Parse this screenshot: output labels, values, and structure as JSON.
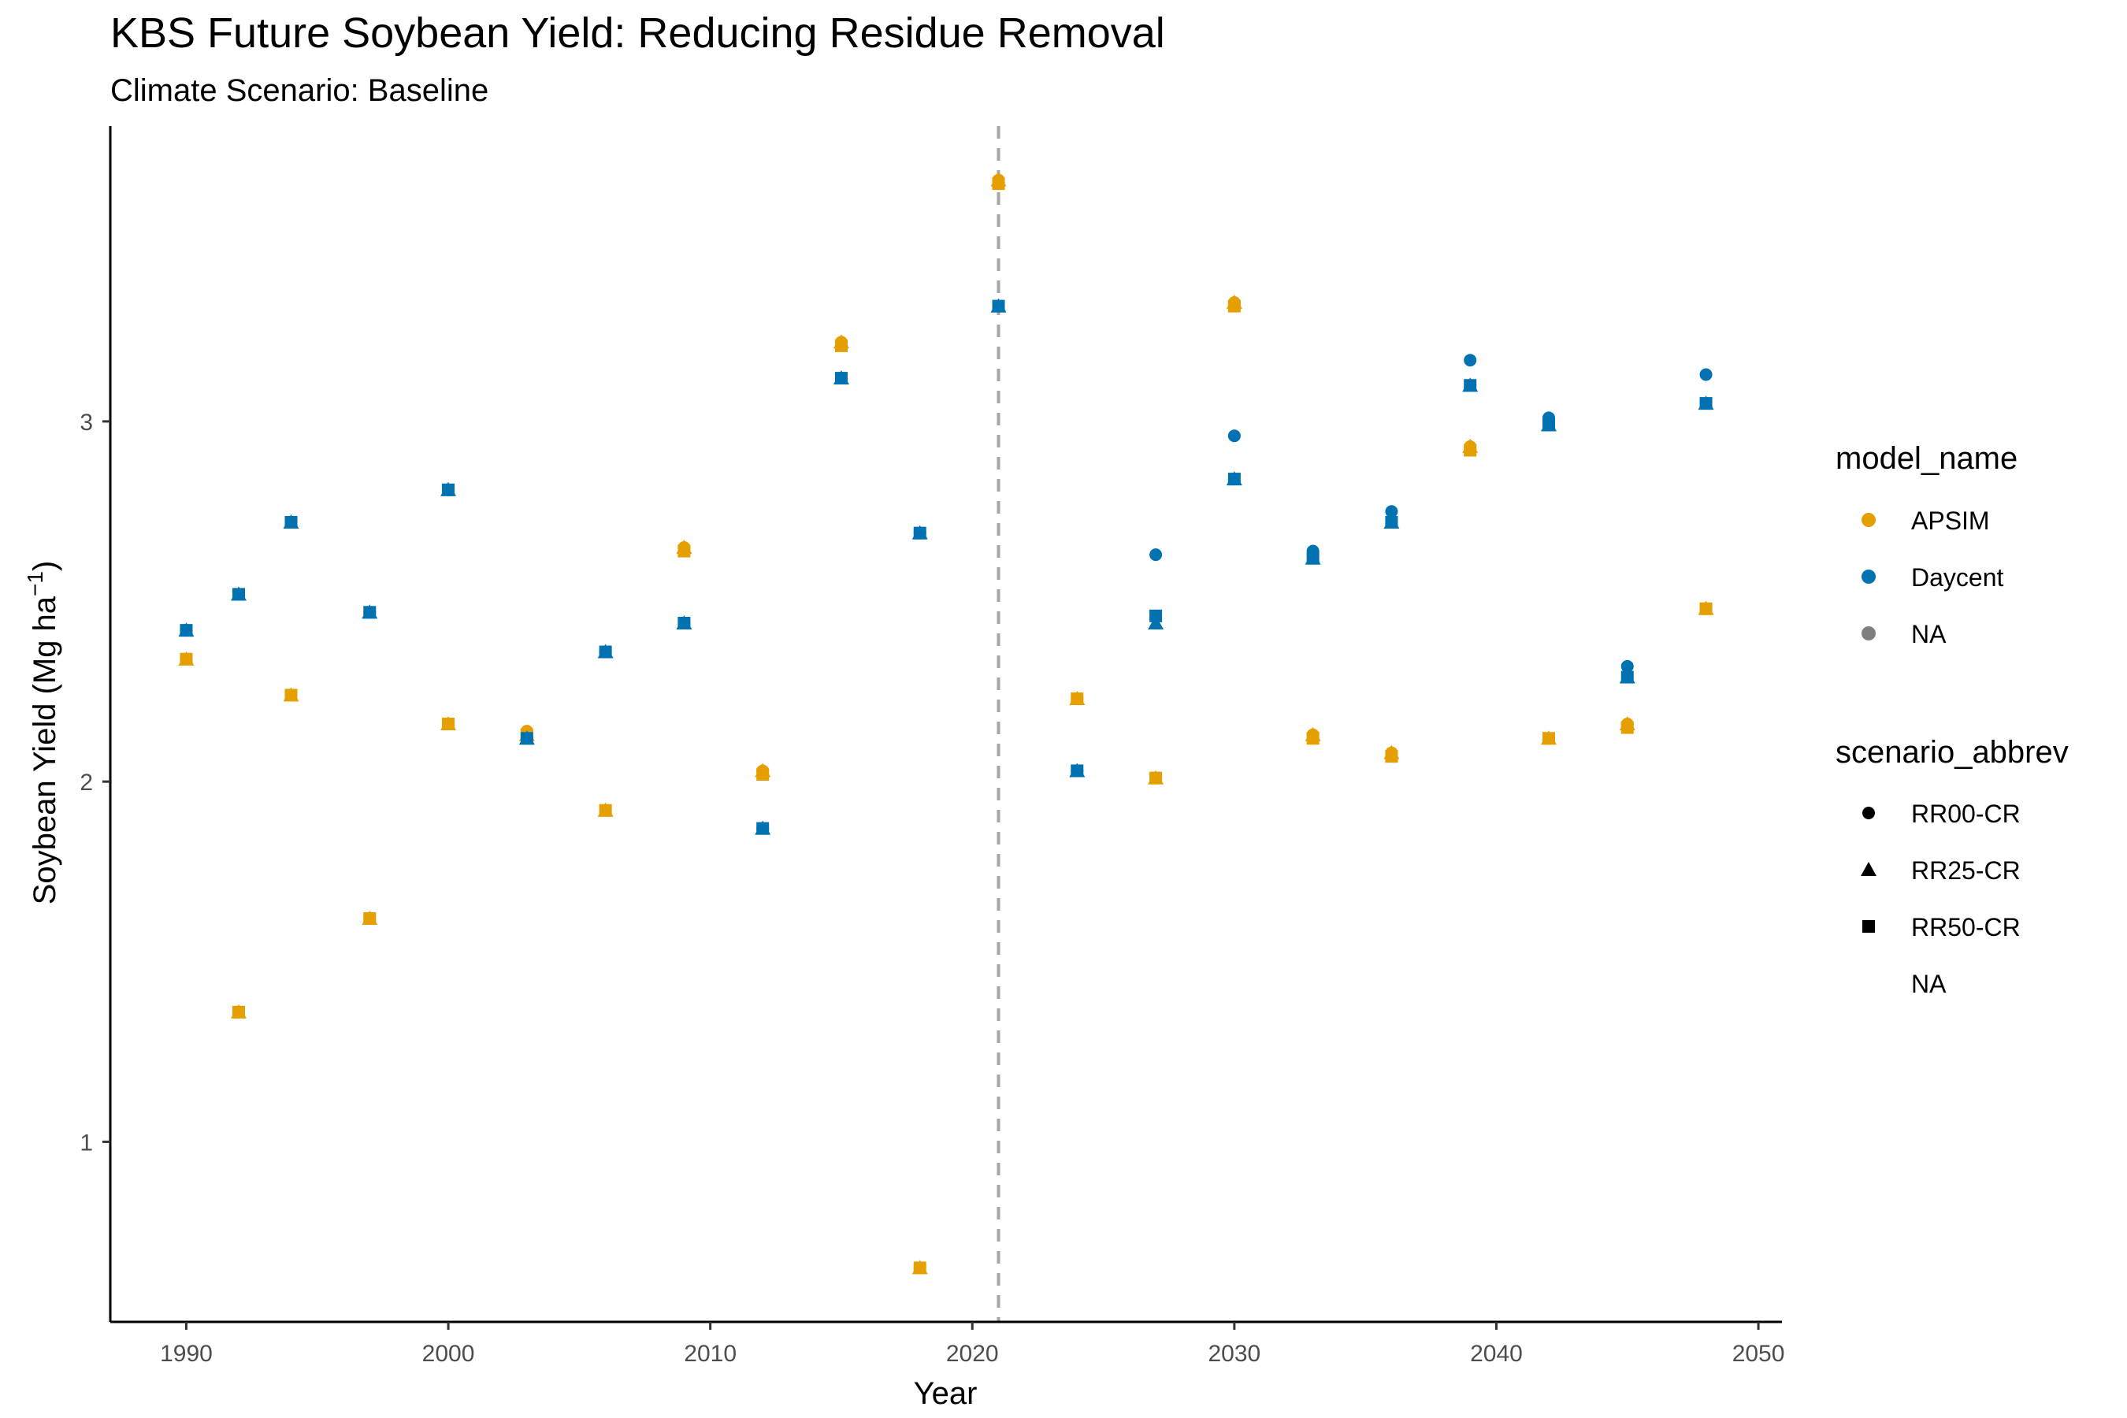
{
  "chart_data": {
    "type": "scatter",
    "title": "KBS Future Soybean Yield: Reducing Residue Removal",
    "subtitle": "Climate Scenario: Baseline",
    "xlabel": "Year",
    "ylabel": "Soybean Yield (Mg ha",
    "ylabel_sup": "−1",
    "ylabel_suffix": ")",
    "xlim": [
      1987.1,
      2050.9
    ],
    "ylim": [
      0.5,
      3.82
    ],
    "x_ticks": [
      1990,
      2000,
      2010,
      2020,
      2030,
      2040,
      2050
    ],
    "y_ticks": [
      1,
      2,
      3
    ],
    "vline_x": 2021,
    "grid": false,
    "legend_position": "right",
    "colors": {
      "APSIM": "#E69F00",
      "Daycent": "#0072B2",
      "NA": "#7f7f7f",
      "vline": "#a6a6a6"
    },
    "legend": {
      "model_name": {
        "title": "model_name",
        "entries": [
          "APSIM",
          "Daycent",
          "NA"
        ]
      },
      "scenario_abbrev": {
        "title": "scenario_abbrev",
        "entries": [
          "RR00-CR",
          "RR25-CR",
          "RR50-CR",
          "NA"
        ]
      }
    },
    "series": [
      {
        "model": "APSIM",
        "scenario": "RR00-CR",
        "shape": "circle",
        "x": [
          1990,
          1992,
          1994,
          1997,
          2000,
          2003,
          2006,
          2009,
          2012,
          2015,
          2018,
          2021,
          2024,
          2027,
          2030,
          2033,
          2036,
          2039,
          2042,
          2045,
          2048
        ],
        "y": [
          2.34,
          1.36,
          2.24,
          1.62,
          2.16,
          2.14,
          1.92,
          2.65,
          2.03,
          3.22,
          0.65,
          3.67,
          2.23,
          2.01,
          3.33,
          2.13,
          2.08,
          2.93,
          2.12,
          2.16,
          2.48
        ]
      },
      {
        "model": "APSIM",
        "scenario": "RR25-CR",
        "shape": "triangle",
        "x": [
          1990,
          1992,
          1994,
          1997,
          2000,
          2003,
          2006,
          2009,
          2012,
          2015,
          2018,
          2021,
          2024,
          2027,
          2030,
          2033,
          2036,
          2039,
          2042,
          2045,
          2048
        ],
        "y": [
          2.34,
          1.36,
          2.24,
          1.62,
          2.16,
          2.13,
          1.92,
          2.65,
          2.03,
          3.22,
          0.65,
          3.67,
          2.23,
          2.01,
          3.33,
          2.13,
          2.08,
          2.93,
          2.12,
          2.16,
          2.48
        ]
      },
      {
        "model": "APSIM",
        "scenario": "RR50-CR",
        "shape": "square",
        "x": [
          1990,
          1992,
          1994,
          1997,
          2000,
          2003,
          2006,
          2009,
          2012,
          2015,
          2018,
          2021,
          2024,
          2027,
          2030,
          2033,
          2036,
          2039,
          2042,
          2045,
          2048
        ],
        "y": [
          2.34,
          1.36,
          2.24,
          1.62,
          2.16,
          2.13,
          1.92,
          2.64,
          2.02,
          3.21,
          0.65,
          3.66,
          2.23,
          2.01,
          3.32,
          2.12,
          2.07,
          2.92,
          2.12,
          2.15,
          2.48
        ]
      },
      {
        "model": "Daycent",
        "scenario": "RR00-CR",
        "shape": "circle",
        "x": [
          1990,
          1992,
          1994,
          1997,
          2000,
          2003,
          2006,
          2009,
          2012,
          2015,
          2018,
          2021,
          2024,
          2027,
          2030,
          2033,
          2036,
          2039,
          2042,
          2045,
          2048
        ],
        "y": [
          2.42,
          2.52,
          2.72,
          2.47,
          2.81,
          2.12,
          2.36,
          2.44,
          1.87,
          3.12,
          2.69,
          3.32,
          2.03,
          2.63,
          2.96,
          2.64,
          2.75,
          3.17,
          3.01,
          2.32,
          3.13
        ]
      },
      {
        "model": "Daycent",
        "scenario": "RR25-CR",
        "shape": "triangle",
        "x": [
          1990,
          1992,
          1994,
          1997,
          2000,
          2003,
          2006,
          2009,
          2012,
          2015,
          2018,
          2021,
          2024,
          2027,
          2030,
          2033,
          2036,
          2039,
          2042,
          2045,
          2048
        ],
        "y": [
          2.42,
          2.52,
          2.72,
          2.47,
          2.81,
          2.12,
          2.36,
          2.44,
          1.87,
          3.12,
          2.69,
          3.32,
          2.03,
          2.44,
          2.84,
          2.62,
          2.72,
          3.1,
          2.99,
          2.29,
          3.05
        ]
      },
      {
        "model": "Daycent",
        "scenario": "RR50-CR",
        "shape": "square",
        "x": [
          1990,
          1992,
          1994,
          1997,
          2000,
          2003,
          2006,
          2009,
          2012,
          2015,
          2018,
          2021,
          2024,
          2027,
          2030,
          2033,
          2036,
          2039,
          2042,
          2045,
          2048
        ],
        "y": [
          2.42,
          2.52,
          2.72,
          2.47,
          2.81,
          2.12,
          2.36,
          2.44,
          1.87,
          3.12,
          2.69,
          3.32,
          2.03,
          2.46,
          2.84,
          2.62,
          2.72,
          3.1,
          2.99,
          2.29,
          3.05
        ]
      }
    ]
  }
}
